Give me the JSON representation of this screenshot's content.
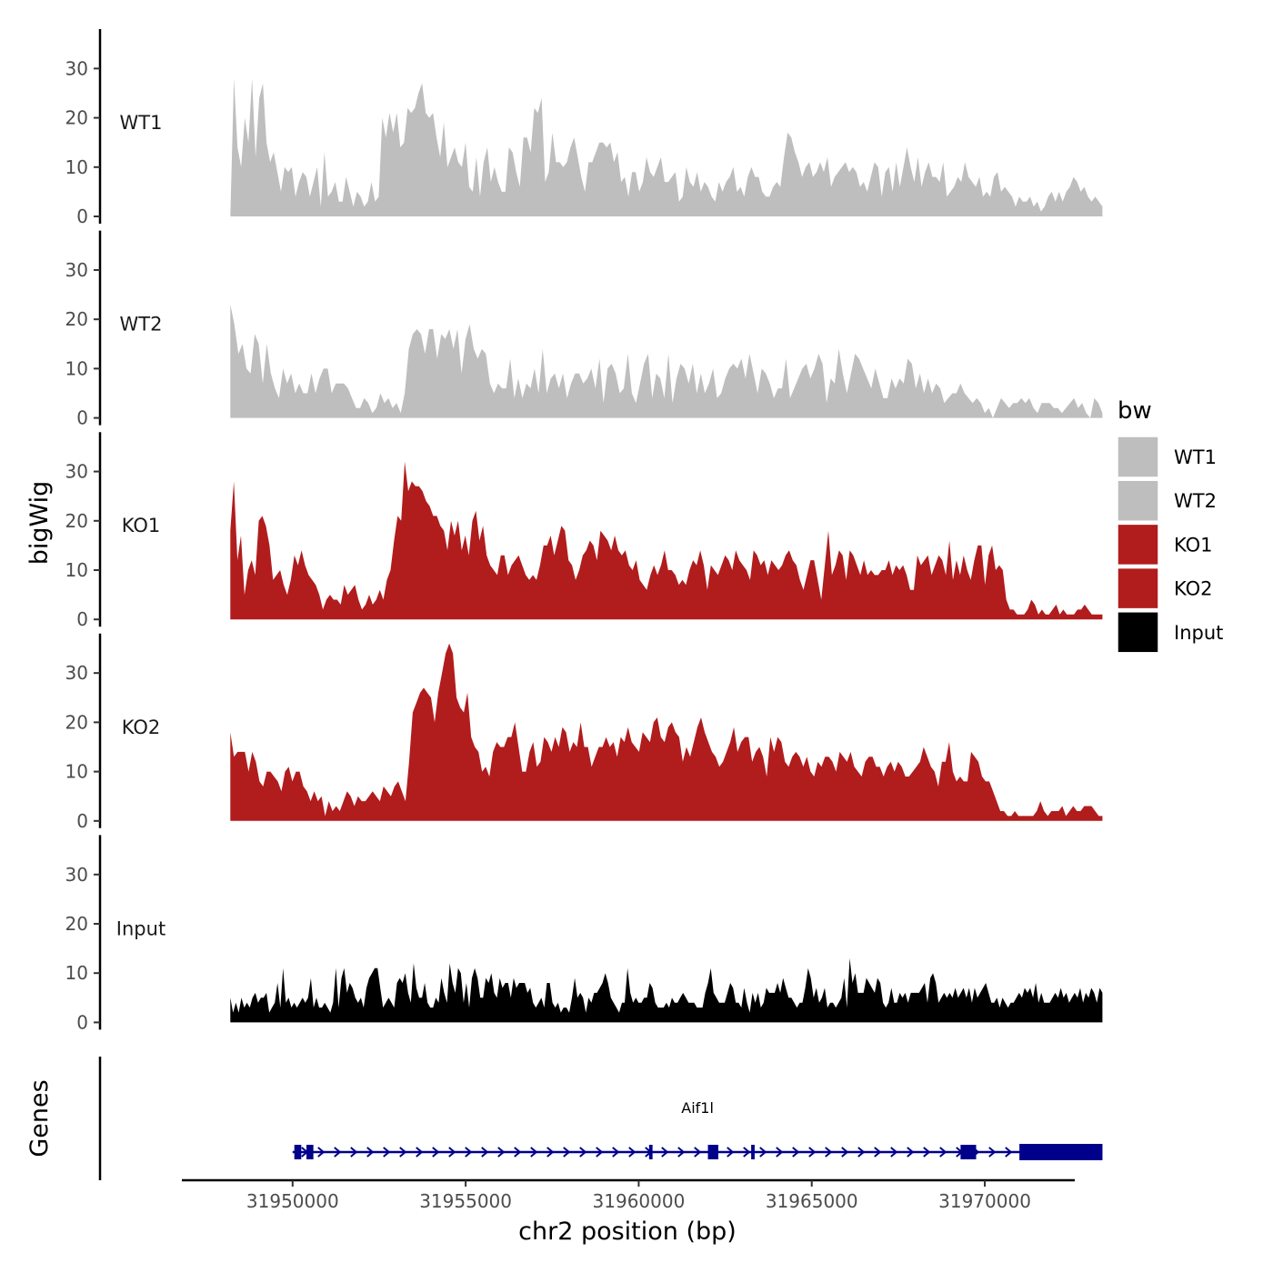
{
  "chart_data": {
    "type": "area",
    "ylabel": "bigWig",
    "xlabel": "chr2 position (bp)",
    "ylim": [
      0,
      38
    ],
    "y_ticks": [
      0,
      10,
      20,
      30
    ],
    "x_domain": [
      31946800,
      31972600
    ],
    "x_range": [
      31948200,
      31973400
    ],
    "x_ticks": [
      31950000,
      31955000,
      31960000,
      31965000,
      31970000
    ],
    "x_tick_labels": [
      "31950000",
      "31955000",
      "31960000",
      "31965000",
      "31970000"
    ],
    "series": [
      {
        "name": "WT1",
        "color": "#bebebe",
        "x_start": 31948200,
        "x_end": 31973400,
        "values": [
          0,
          28,
          14,
          10,
          20,
          15,
          28,
          12,
          24,
          27,
          15,
          11,
          13,
          9,
          5,
          10,
          9,
          10,
          4,
          7,
          9,
          8,
          4,
          7,
          10,
          2,
          13,
          4,
          5,
          7,
          3,
          3,
          8,
          5,
          2,
          5,
          4,
          2,
          3,
          7,
          3,
          4,
          20,
          16,
          21,
          17,
          21,
          14,
          15,
          22,
          21,
          22,
          25,
          27,
          21,
          20,
          21,
          16,
          12,
          19,
          10,
          12,
          14,
          11,
          10,
          15,
          6,
          5,
          12,
          4,
          11,
          14,
          7,
          10,
          7,
          5,
          5,
          14,
          13,
          9,
          6,
          16,
          16,
          13,
          22,
          21,
          24,
          7,
          9,
          17,
          11,
          11,
          10,
          11,
          14,
          16,
          12,
          8,
          5,
          11,
          11,
          13,
          15,
          15,
          14,
          15,
          11,
          13,
          7,
          8,
          4,
          9,
          9,
          5,
          7,
          12,
          9,
          8,
          10,
          12,
          7,
          7,
          8,
          9,
          3,
          4,
          10,
          7,
          6,
          9,
          5,
          7,
          6,
          4,
          3,
          7,
          5,
          7,
          8,
          10,
          5,
          6,
          4,
          8,
          10,
          8,
          8,
          5,
          4,
          4,
          6,
          7,
          6,
          12,
          17,
          16,
          13,
          11,
          8,
          10,
          11,
          8,
          9,
          11,
          9,
          12,
          6,
          8,
          9,
          10,
          11,
          9,
          10,
          9,
          6,
          7,
          5,
          8,
          11,
          10,
          4,
          9,
          10,
          5,
          11,
          6,
          10,
          14,
          10,
          7,
          12,
          6,
          9,
          11,
          8,
          8,
          7,
          11,
          4,
          5,
          6,
          8,
          7,
          11,
          8,
          7,
          6,
          8,
          4,
          5,
          4,
          8,
          9,
          5,
          6,
          5,
          4,
          2,
          4,
          3,
          3,
          4,
          2,
          3,
          1,
          2,
          4,
          5,
          3,
          5,
          3,
          5,
          6,
          8,
          7,
          5,
          6,
          4,
          3,
          4,
          3,
          2
        ]
      },
      {
        "name": "WT2",
        "color": "#bebebe",
        "x_start": 31948200,
        "x_end": 31973400,
        "values": [
          23,
          19,
          13,
          15,
          10,
          9,
          17,
          15,
          7,
          15,
          9,
          6,
          4,
          10,
          7,
          9,
          5,
          7,
          5,
          5,
          9,
          5,
          8,
          10,
          10,
          5,
          7,
          7,
          7,
          6,
          4,
          2,
          2,
          4,
          3,
          1,
          2,
          5,
          3,
          4,
          2,
          3,
          1,
          5,
          14,
          17,
          18,
          17,
          13,
          18,
          18,
          12,
          17,
          16,
          18,
          14,
          18,
          9,
          16,
          19,
          14,
          12,
          14,
          13,
          7,
          5,
          7,
          6,
          6,
          12,
          4,
          8,
          4,
          7,
          6,
          10,
          5,
          14,
          5,
          8,
          9,
          6,
          9,
          4,
          7,
          9,
          9,
          7,
          8,
          10,
          6,
          12,
          3,
          10,
          11,
          9,
          5,
          6,
          13,
          5,
          3,
          7,
          11,
          13,
          4,
          9,
          8,
          4,
          13,
          3,
          8,
          11,
          10,
          7,
          11,
          5,
          9,
          5,
          7,
          10,
          4,
          5,
          8,
          10,
          11,
          10,
          12,
          8,
          13,
          9,
          5,
          10,
          9,
          7,
          4,
          6,
          6,
          12,
          4,
          6,
          8,
          10,
          11,
          8,
          10,
          13,
          11,
          3,
          8,
          7,
          14,
          9,
          5,
          9,
          13,
          12,
          10,
          8,
          6,
          10,
          7,
          4,
          4,
          8,
          6,
          8,
          7,
          12,
          11,
          6,
          9,
          5,
          8,
          5,
          7,
          6,
          3,
          4,
          5,
          5,
          7,
          5,
          4,
          3,
          4,
          3,
          1,
          2,
          0,
          2,
          4,
          3,
          2,
          3,
          3,
          4,
          3,
          4,
          2,
          1,
          3,
          3,
          3,
          2,
          2,
          1,
          2,
          3,
          4,
          2,
          3,
          1,
          0,
          4,
          3,
          1
        ]
      },
      {
        "name": "KO1",
        "color": "#b11c1d",
        "x_start": 31948200,
        "x_end": 31973400,
        "values": [
          18,
          28,
          12,
          17,
          5,
          10,
          12,
          9,
          20,
          21,
          19,
          15,
          8,
          9,
          10,
          7,
          5,
          8,
          13,
          11,
          14,
          11,
          9,
          8,
          7,
          5,
          2,
          4,
          5,
          4,
          4,
          3,
          7,
          5,
          6,
          7,
          4,
          2,
          3,
          5,
          3,
          4,
          6,
          4,
          8,
          10,
          16,
          21,
          20,
          32,
          26,
          28,
          27,
          27,
          26,
          24,
          23,
          21,
          21,
          19,
          18,
          14,
          20,
          17,
          20,
          14,
          17,
          13,
          20,
          22,
          16,
          19,
          13,
          11,
          10,
          9,
          13,
          13,
          9,
          11,
          12,
          13,
          11,
          9,
          8,
          9,
          8,
          11,
          15,
          15,
          17,
          13,
          16,
          19,
          18,
          12,
          11,
          8,
          10,
          13,
          14,
          16,
          15,
          12,
          18,
          17,
          16,
          14,
          17,
          14,
          13,
          14,
          11,
          10,
          12,
          8,
          7,
          6,
          9,
          11,
          9,
          11,
          14,
          10,
          10,
          9,
          7,
          8,
          7,
          10,
          12,
          11,
          14,
          11,
          6,
          11,
          10,
          9,
          11,
          13,
          12,
          10,
          14,
          12,
          11,
          10,
          8,
          14,
          13,
          11,
          12,
          9,
          12,
          11,
          10,
          11,
          13,
          14,
          12,
          11,
          8,
          6,
          9,
          12,
          12,
          8,
          4,
          11,
          18,
          9,
          11,
          14,
          13,
          8,
          14,
          13,
          11,
          9,
          12,
          9,
          10,
          9,
          9,
          10,
          10,
          12,
          9,
          11,
          10,
          11,
          9,
          6,
          6,
          13,
          11,
          12,
          13,
          9,
          11,
          13,
          12,
          9,
          16,
          8,
          12,
          9,
          13,
          10,
          8,
          12,
          15,
          15,
          7,
          13,
          15,
          10,
          11,
          10,
          4,
          2,
          2,
          1,
          1,
          1,
          2,
          4,
          3,
          1,
          2,
          1,
          1,
          2,
          3,
          1,
          2,
          1,
          1,
          1,
          2,
          2,
          3,
          2,
          1,
          1,
          1,
          1
        ]
      },
      {
        "name": "KO2",
        "color": "#b11c1d",
        "x_start": 31948200,
        "x_end": 31973400,
        "values": [
          18,
          13,
          14,
          14,
          14,
          10,
          14,
          12,
          8,
          7,
          10,
          10,
          9,
          8,
          6,
          10,
          11,
          8,
          10,
          10,
          7,
          6,
          4,
          6,
          4,
          5,
          1,
          4,
          2,
          3,
          2,
          4,
          6,
          5,
          3,
          5,
          4,
          4,
          5,
          6,
          5,
          4,
          7,
          6,
          5,
          7,
          8,
          6,
          4,
          12,
          22,
          24,
          26,
          27,
          26,
          25,
          20,
          26,
          30,
          34,
          36,
          34,
          25,
          23,
          22,
          26,
          17,
          15,
          14,
          10,
          11,
          9,
          14,
          16,
          15,
          15,
          17,
          17,
          20,
          15,
          10,
          10,
          14,
          16,
          11,
          12,
          17,
          16,
          14,
          17,
          15,
          19,
          18,
          14,
          16,
          15,
          20,
          15,
          15,
          11,
          13,
          15,
          15,
          17,
          15,
          16,
          13,
          17,
          16,
          19,
          16,
          15,
          14,
          18,
          17,
          16,
          20,
          21,
          17,
          16,
          19,
          20,
          18,
          17,
          12,
          15,
          13,
          16,
          19,
          21,
          18,
          16,
          14,
          13,
          11,
          12,
          14,
          16,
          19,
          14,
          16,
          17,
          17,
          12,
          14,
          15,
          13,
          9,
          17,
          14,
          17,
          16,
          12,
          11,
          13,
          14,
          13,
          11,
          13,
          10,
          9,
          12,
          11,
          13,
          13,
          12,
          10,
          14,
          13,
          12,
          14,
          11,
          10,
          9,
          12,
          13,
          13,
          11,
          11,
          9,
          11,
          12,
          10,
          12,
          11,
          9,
          9,
          10,
          11,
          12,
          15,
          13,
          11,
          10,
          7,
          12,
          12,
          16,
          10,
          8,
          9,
          8,
          8,
          14,
          13,
          12,
          9,
          8,
          8,
          6,
          4,
          2,
          2,
          1,
          1,
          2,
          1,
          1,
          1,
          1,
          1,
          2,
          4,
          2,
          1,
          2,
          2,
          2,
          3,
          1,
          2,
          3,
          2,
          2,
          3,
          3,
          3,
          2,
          1,
          1
        ]
      },
      {
        "name": "Input",
        "color": "#000000",
        "x_start": 31948200,
        "x_end": 31973400,
        "values": [
          5,
          2,
          4,
          2,
          5,
          3,
          4,
          3,
          5,
          6,
          4,
          5,
          5,
          6,
          2,
          3,
          4,
          8,
          3,
          11,
          4,
          5,
          3,
          4,
          3,
          4,
          5,
          4,
          5,
          9,
          3,
          5,
          3,
          3,
          4,
          3,
          2,
          4,
          11,
          3,
          9,
          11,
          6,
          8,
          7,
          5,
          4,
          5,
          3,
          7,
          9,
          10,
          11,
          11,
          7,
          3,
          4,
          5,
          4,
          3,
          8,
          9,
          8,
          10,
          6,
          4,
          12,
          7,
          5,
          5,
          8,
          4,
          3,
          3,
          5,
          4,
          9,
          6,
          4,
          12,
          8,
          6,
          11,
          10,
          4,
          8,
          3,
          9,
          11,
          9,
          5,
          5,
          9,
          8,
          10,
          6,
          5,
          9,
          7,
          8,
          8,
          5,
          9,
          7,
          8,
          8,
          8,
          6,
          7,
          4,
          3,
          4,
          5,
          3,
          8,
          8,
          4,
          3,
          4,
          2,
          3,
          3,
          2,
          5,
          9,
          5,
          6,
          5,
          2,
          5,
          4,
          6,
          6,
          7,
          8,
          10,
          8,
          5,
          4,
          3,
          2,
          4,
          4,
          11,
          6,
          4,
          5,
          4,
          4,
          5,
          5,
          8,
          7,
          4,
          3,
          3,
          3,
          4,
          3,
          5,
          4,
          4,
          5,
          6,
          5,
          4,
          4,
          4,
          3,
          3,
          3,
          6,
          8,
          11,
          6,
          5,
          4,
          4,
          4,
          6,
          8,
          7,
          4,
          4,
          3,
          7,
          4,
          2,
          6,
          4,
          6,
          3,
          4,
          7,
          6,
          6,
          6,
          8,
          6,
          9,
          7,
          5,
          5,
          4,
          3,
          4,
          4,
          7,
          11,
          9,
          5,
          7,
          4,
          5,
          7,
          3,
          4,
          4,
          3,
          4,
          5,
          9,
          3,
          13,
          8,
          10,
          6,
          6,
          6,
          9,
          8,
          7,
          6,
          9,
          8,
          4,
          3,
          4,
          7,
          4,
          4,
          6,
          5,
          6,
          4,
          6,
          6,
          6,
          6,
          7,
          8,
          4,
          9,
          10,
          8,
          4,
          5,
          6,
          5,
          6,
          5,
          7,
          5,
          6,
          7,
          5,
          7,
          4,
          7,
          5,
          6,
          7,
          8,
          6,
          4,
          4,
          5,
          3,
          5,
          4,
          3,
          4,
          4,
          5,
          6,
          5,
          7,
          6,
          7,
          5,
          8,
          4,
          6,
          4,
          4,
          4,
          5,
          6,
          5,
          7,
          5,
          6,
          4,
          5,
          6,
          5,
          7,
          4,
          6,
          5,
          7,
          6,
          4,
          7,
          6
        ]
      }
    ],
    "legend": {
      "title": "bw",
      "placement": "right",
      "entries": [
        {
          "label": "WT1",
          "color": "#bebebe"
        },
        {
          "label": "WT2",
          "color": "#bebebe"
        },
        {
          "label": "KO1",
          "color": "#b11c1d"
        },
        {
          "label": "KO2",
          "color": "#b11c1d"
        },
        {
          "label": "Input",
          "color": "#000000"
        }
      ]
    },
    "genes": {
      "title": "Genes",
      "color": "#00008b",
      "items": [
        {
          "name": "Aif1l",
          "strand": "+",
          "start": 31950000,
          "end": 31973400,
          "exons": [
            {
              "start": 31950050,
              "end": 31950250
            },
            {
              "start": 31950400,
              "end": 31950600
            },
            {
              "start": 31960300,
              "end": 31960400
            },
            {
              "start": 31962000,
              "end": 31962300
            },
            {
              "start": 31963250,
              "end": 31963350
            },
            {
              "start": 31969300,
              "end": 31969750
            },
            {
              "start": 31971000,
              "end": 31973400
            }
          ]
        }
      ]
    }
  }
}
